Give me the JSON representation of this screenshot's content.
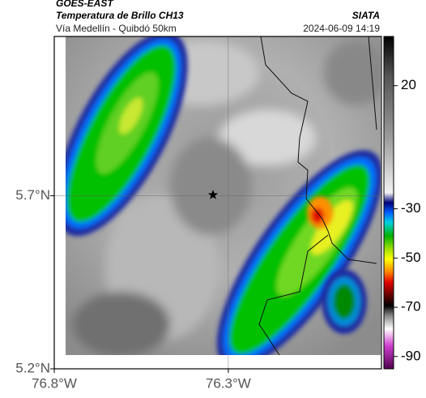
{
  "header": {
    "source": "GOES-EAST",
    "title": "Temperatura de Brillo CH13",
    "subtitle": "Vía Medellín - Quibdó 50km",
    "brand": "SIATA",
    "timestamp": "2024-06-09 14:19"
  },
  "map": {
    "xlim": [
      -76.8,
      -75.86
    ],
    "ylim": [
      5.2,
      6.16
    ],
    "xticks": [
      {
        "value": -76.8,
        "label": "76.8°W"
      },
      {
        "value": -76.3,
        "label": "76.3°W"
      }
    ],
    "yticks": [
      {
        "value": 5.2,
        "label": "5.2°N"
      },
      {
        "value": 5.7,
        "label": "5.7°N"
      }
    ],
    "grid": true
  },
  "colorbar": {
    "lim": [
      -95,
      40
    ],
    "ticks": [
      20,
      -30,
      -50,
      -70,
      -90
    ]
  }
}
